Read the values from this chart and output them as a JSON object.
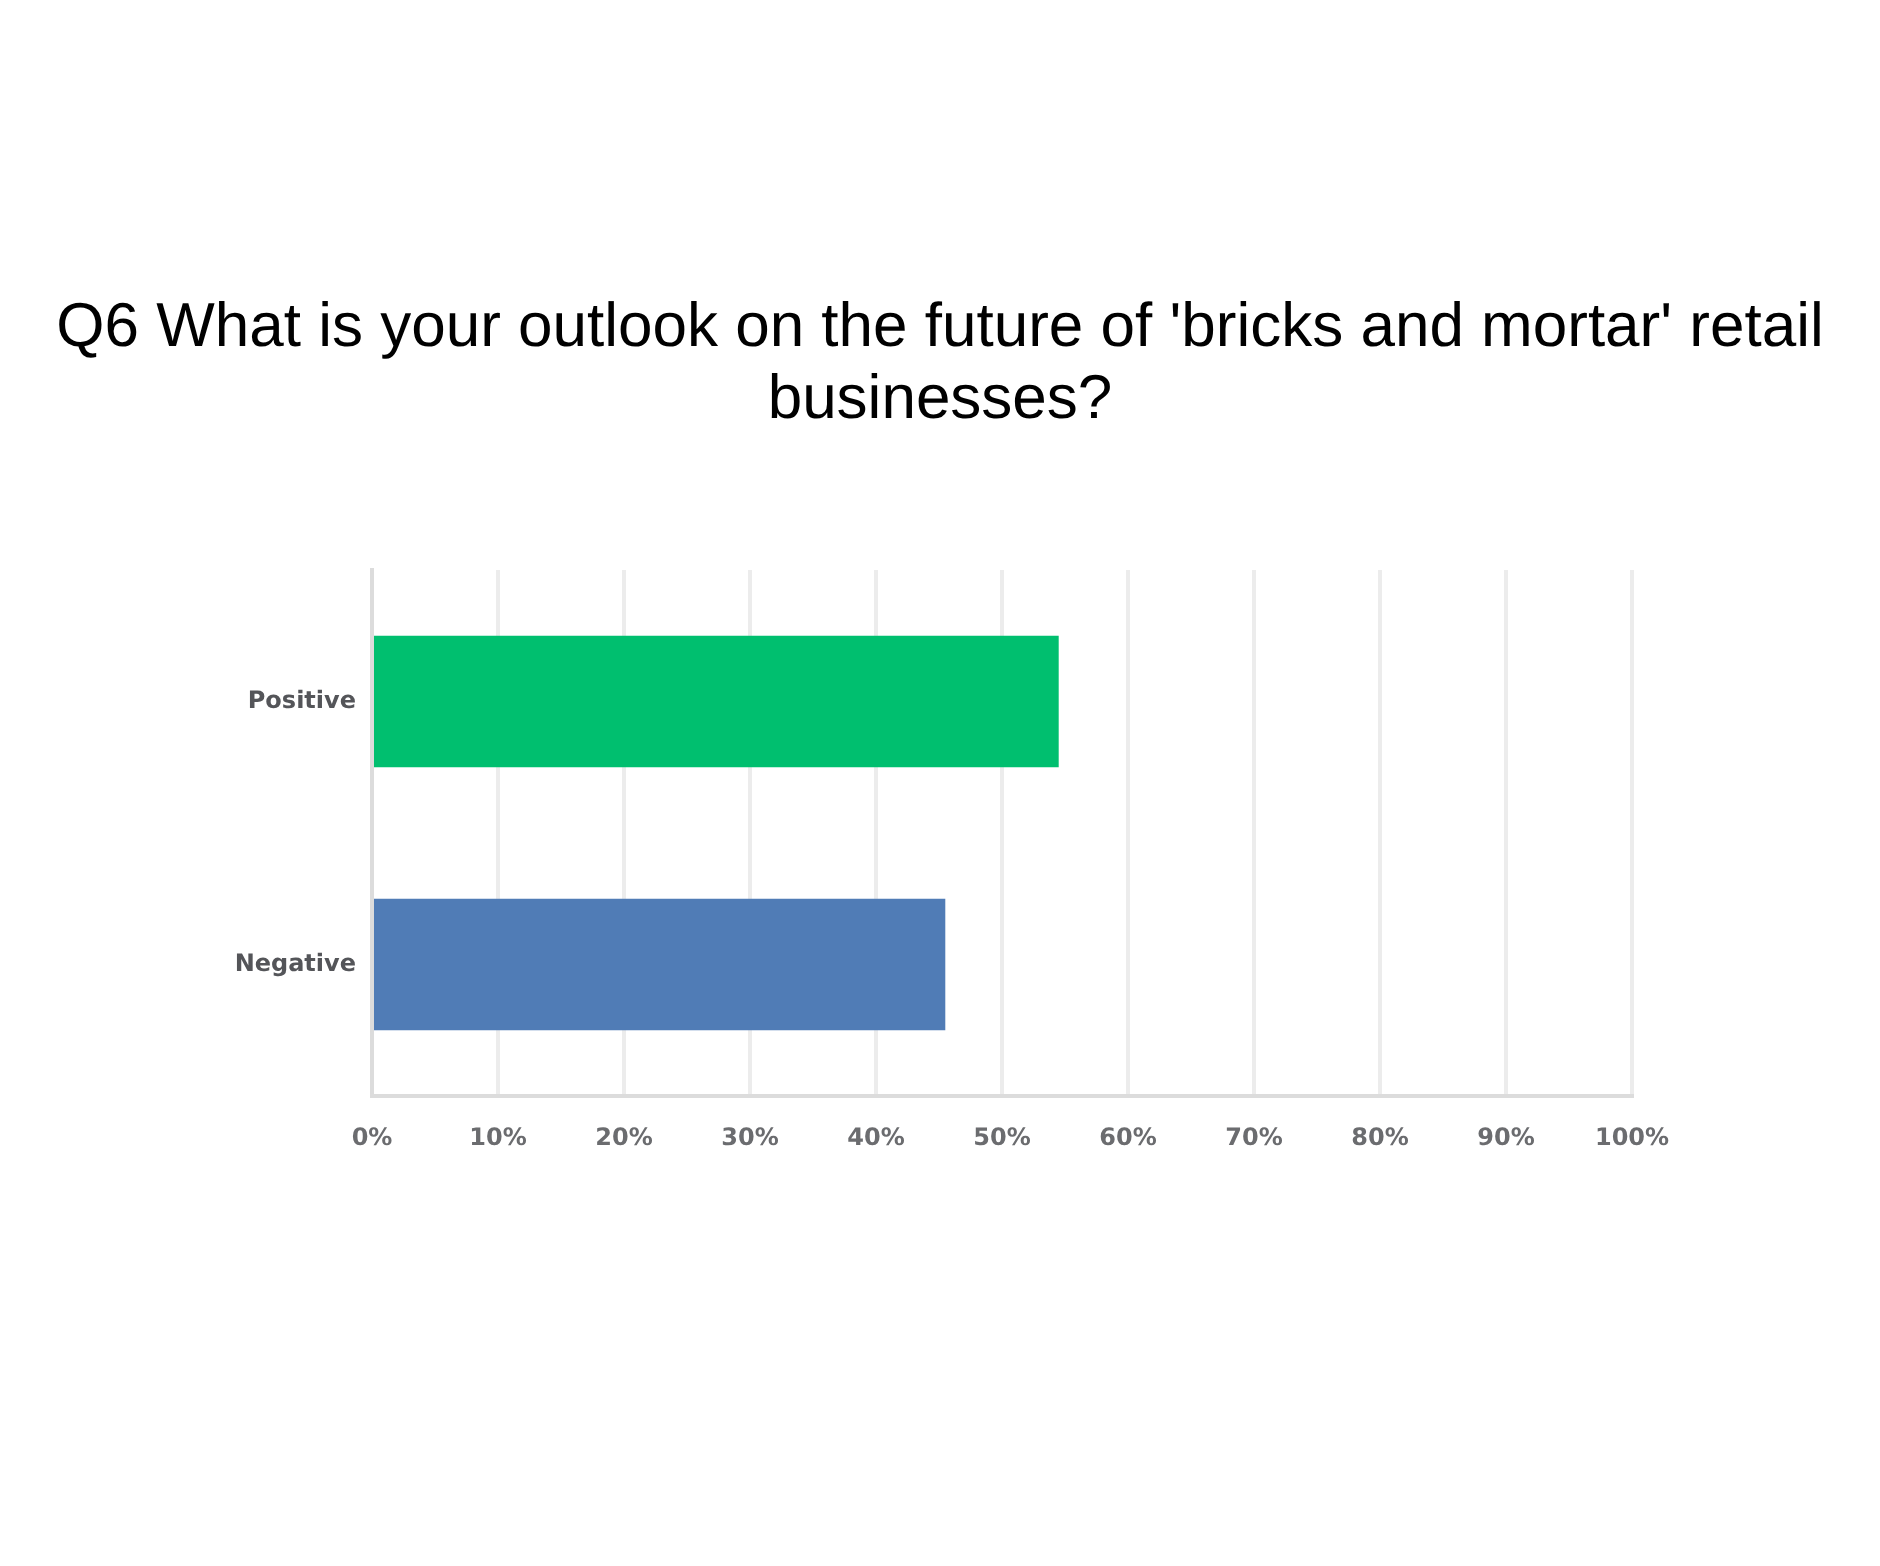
{
  "chart_data": {
    "type": "bar",
    "title": "Q6 What is your outlook on the future of 'bricks and mortar' retail businesses?",
    "categories": [
      "Positive",
      "Negative"
    ],
    "values": [
      54.5,
      45.5
    ],
    "colors": [
      "#00bf6f",
      "#507cb6"
    ],
    "orientation": "horizontal",
    "xlim": [
      0,
      100
    ],
    "xticks": [
      {
        "value": 0,
        "label": "0%"
      },
      {
        "value": 10,
        "label": "10%"
      },
      {
        "value": 20,
        "label": "20%"
      },
      {
        "value": 30,
        "label": "30%"
      },
      {
        "value": 40,
        "label": "40%"
      },
      {
        "value": 50,
        "label": "50%"
      },
      {
        "value": 60,
        "label": "60%"
      },
      {
        "value": 70,
        "label": "70%"
      },
      {
        "value": 80,
        "label": "80%"
      },
      {
        "value": 90,
        "label": "90%"
      },
      {
        "value": 100,
        "label": "100%"
      }
    ],
    "grid": "x"
  }
}
